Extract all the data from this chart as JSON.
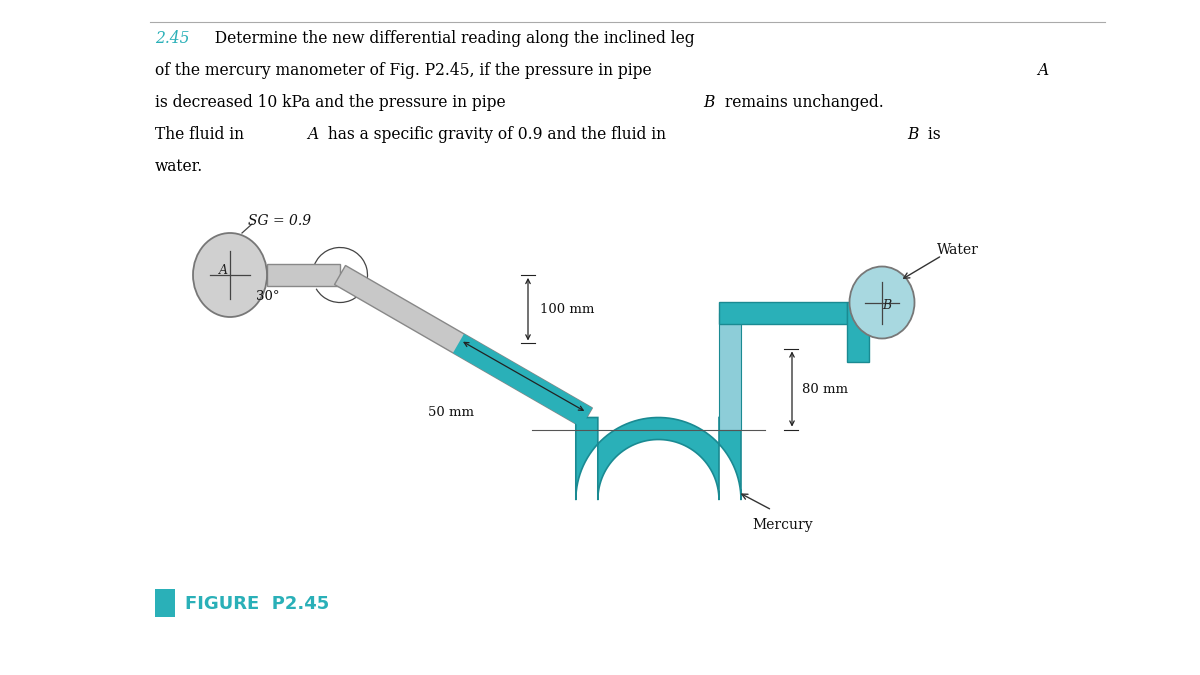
{
  "bg_color": "#ffffff",
  "text_color": "#000000",
  "teal_color": "#2ab0b8",
  "teal_dark": "#1a8a92",
  "gray_pipe_color": "#c8c8c8",
  "gray_pipe_edge": "#888888",
  "pipe_A_circle_color": "#d0d0d0",
  "pipe_B_circle_color": "#a8d8e0",
  "figure_label": "FIGURE  P2.45",
  "sg_label": "SG = 0.9",
  "water_label": "Water",
  "mercury_label": "Mercury",
  "dim_100mm": "100 mm",
  "dim_50mm": "50 mm",
  "dim_80mm": "80 mm",
  "angle_label": "30°",
  "label_A": "A",
  "label_B": "B",
  "cyan_square_color": "#2ab0b8",
  "line1_num": "2.45",
  "line1_rest": "  Determine the new differential reading along the inclined leg",
  "line2": "of the mercury manometer of Fig. P2.45, if the pressure in pipe ",
  "line2_italic": "A",
  "line3a": "is decreased 10 kPa and the pressure in pipe ",
  "line3b": "B",
  "line3c": " remains unchanged.",
  "line4a": "The fluid in ",
  "line4b": "A",
  "line4c": " has a specific gravity of 0.9 and the fluid in ",
  "line4d": "B",
  "line4e": " is",
  "line5": "water."
}
